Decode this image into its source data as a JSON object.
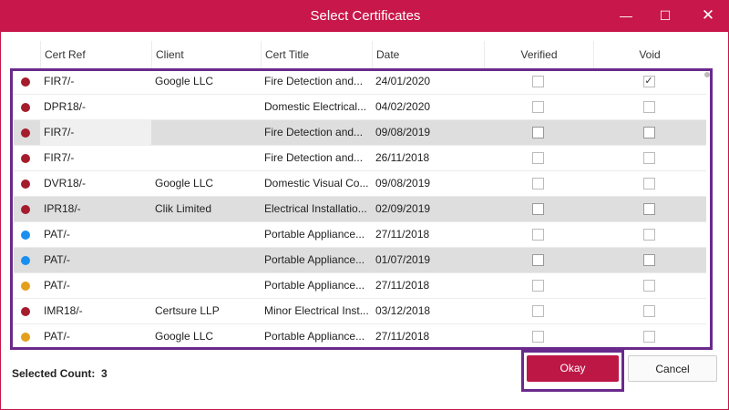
{
  "window": {
    "title": "Select Certificates"
  },
  "columns": [
    "",
    "Cert Ref",
    "Client",
    "Cert Title",
    "Date",
    "Verified",
    "Void"
  ],
  "colors": {
    "accent": "#c8174a",
    "red": "#a51d2d",
    "blue": "#1a8ff0",
    "yellow": "#e3a01c",
    "highlight": "#6a2a8c"
  },
  "rows": [
    {
      "status": "red",
      "ref": "FIR7/-",
      "client": "Google LLC",
      "title": "Fire Detection and...",
      "date": "24/01/2020",
      "verified": false,
      "void": true,
      "selected": false
    },
    {
      "status": "red",
      "ref": "DPR18/-",
      "client": "",
      "title": "Domestic Electrical...",
      "date": "04/02/2020",
      "verified": false,
      "void": false,
      "selected": false
    },
    {
      "status": "red",
      "ref": "FIR7/-",
      "client": "",
      "title": "Fire Detection and...",
      "date": "09/08/2019",
      "verified": false,
      "void": false,
      "selected": true
    },
    {
      "status": "red",
      "ref": "FIR7/-",
      "client": "",
      "title": "Fire Detection and...",
      "date": "26/11/2018",
      "verified": false,
      "void": false,
      "selected": false
    },
    {
      "status": "red",
      "ref": "DVR18/-",
      "client": "Google LLC",
      "title": "Domestic Visual Co...",
      "date": "09/08/2019",
      "verified": false,
      "void": false,
      "selected": false
    },
    {
      "status": "red",
      "ref": "IPR18/-",
      "client": "Clik Limited",
      "title": "Electrical Installatio...",
      "date": "02/09/2019",
      "verified": false,
      "void": false,
      "selected": true
    },
    {
      "status": "blue",
      "ref": "PAT/-",
      "client": "",
      "title": "Portable Appliance...",
      "date": "27/11/2018",
      "verified": false,
      "void": false,
      "selected": false
    },
    {
      "status": "blue",
      "ref": "PAT/-",
      "client": "",
      "title": "Portable Appliance...",
      "date": "01/07/2019",
      "verified": false,
      "void": false,
      "selected": true
    },
    {
      "status": "yellow",
      "ref": "PAT/-",
      "client": "",
      "title": "Portable Appliance...",
      "date": "27/11/2018",
      "verified": false,
      "void": false,
      "selected": false
    },
    {
      "status": "red",
      "ref": "IMR18/-",
      "client": "Certsure LLP",
      "title": "Minor Electrical Inst...",
      "date": "03/12/2018",
      "verified": false,
      "void": false,
      "selected": false
    },
    {
      "status": "yellow",
      "ref": "PAT/-",
      "client": "Google LLC",
      "title": "Portable Appliance...",
      "date": "27/11/2018",
      "verified": false,
      "void": false,
      "selected": false
    }
  ],
  "footer": {
    "count_label": "Selected Count:",
    "count": "3",
    "okay": "Okay",
    "cancel": "Cancel"
  }
}
